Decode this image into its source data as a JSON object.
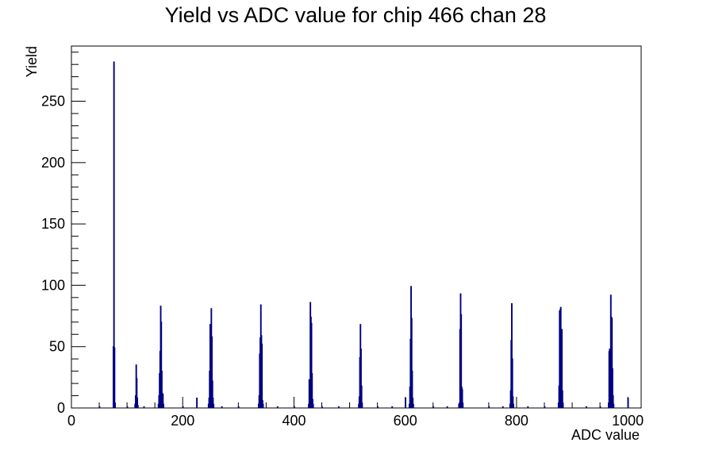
{
  "chart_data": {
    "type": "histogram",
    "title": "Yield vs ADC value for chip 466 chan 28",
    "xlabel": "ADC value",
    "ylabel": "Yield",
    "xlim": [
      0,
      1024
    ],
    "ylim": [
      0,
      295
    ],
    "x_ticks": [
      0,
      200,
      400,
      600,
      800,
      1000
    ],
    "y_ticks": [
      0,
      50,
      100,
      150,
      200,
      250
    ],
    "grid": false,
    "legend": "none",
    "line_color": "#000080",
    "bin_width": 1,
    "bins": [
      {
        "x": 50,
        "y": 1
      },
      {
        "x": 75,
        "y": 50
      },
      {
        "x": 76,
        "y": 282
      },
      {
        "x": 77,
        "y": 49
      },
      {
        "x": 78,
        "y": 4
      },
      {
        "x": 100,
        "y": 1
      },
      {
        "x": 114,
        "y": 3
      },
      {
        "x": 115,
        "y": 10
      },
      {
        "x": 116,
        "y": 35
      },
      {
        "x": 117,
        "y": 24
      },
      {
        "x": 118,
        "y": 8
      },
      {
        "x": 119,
        "y": 2
      },
      {
        "x": 130,
        "y": 1
      },
      {
        "x": 156,
        "y": 3
      },
      {
        "x": 157,
        "y": 10
      },
      {
        "x": 158,
        "y": 28
      },
      {
        "x": 159,
        "y": 46
      },
      {
        "x": 160,
        "y": 83
      },
      {
        "x": 161,
        "y": 70
      },
      {
        "x": 162,
        "y": 30
      },
      {
        "x": 163,
        "y": 12
      },
      {
        "x": 164,
        "y": 11
      },
      {
        "x": 165,
        "y": 3
      },
      {
        "x": 200,
        "y": 1
      },
      {
        "x": 225,
        "y": 8
      },
      {
        "x": 246,
        "y": 3
      },
      {
        "x": 247,
        "y": 8
      },
      {
        "x": 248,
        "y": 30
      },
      {
        "x": 249,
        "y": 68
      },
      {
        "x": 250,
        "y": 53
      },
      {
        "x": 251,
        "y": 81
      },
      {
        "x": 252,
        "y": 58
      },
      {
        "x": 253,
        "y": 22
      },
      {
        "x": 254,
        "y": 8
      },
      {
        "x": 255,
        "y": 3
      },
      {
        "x": 270,
        "y": 1
      },
      {
        "x": 300,
        "y": 1
      },
      {
        "x": 336,
        "y": 3
      },
      {
        "x": 337,
        "y": 10
      },
      {
        "x": 338,
        "y": 44
      },
      {
        "x": 339,
        "y": 57
      },
      {
        "x": 340,
        "y": 84
      },
      {
        "x": 341,
        "y": 59
      },
      {
        "x": 342,
        "y": 52
      },
      {
        "x": 343,
        "y": 6
      },
      {
        "x": 344,
        "y": 3
      },
      {
        "x": 370,
        "y": 1
      },
      {
        "x": 400,
        "y": 1
      },
      {
        "x": 426,
        "y": 3
      },
      {
        "x": 427,
        "y": 23
      },
      {
        "x": 428,
        "y": 18
      },
      {
        "x": 429,
        "y": 86
      },
      {
        "x": 430,
        "y": 74
      },
      {
        "x": 431,
        "y": 69
      },
      {
        "x": 432,
        "y": 28
      },
      {
        "x": 433,
        "y": 7
      },
      {
        "x": 434,
        "y": 3
      },
      {
        "x": 450,
        "y": 1
      },
      {
        "x": 480,
        "y": 1
      },
      {
        "x": 516,
        "y": 3
      },
      {
        "x": 517,
        "y": 9
      },
      {
        "x": 518,
        "y": 41
      },
      {
        "x": 519,
        "y": 68
      },
      {
        "x": 520,
        "y": 48
      },
      {
        "x": 521,
        "y": 18
      },
      {
        "x": 522,
        "y": 4
      },
      {
        "x": 550,
        "y": 1
      },
      {
        "x": 576,
        "y": 1
      },
      {
        "x": 600,
        "y": 8
      },
      {
        "x": 607,
        "y": 3
      },
      {
        "x": 608,
        "y": 17
      },
      {
        "x": 609,
        "y": 56
      },
      {
        "x": 610,
        "y": 99
      },
      {
        "x": 611,
        "y": 73
      },
      {
        "x": 612,
        "y": 30
      },
      {
        "x": 613,
        "y": 8
      },
      {
        "x": 614,
        "y": 3
      },
      {
        "x": 650,
        "y": 1
      },
      {
        "x": 675,
        "y": 1
      },
      {
        "x": 696,
        "y": 3
      },
      {
        "x": 697,
        "y": 4
      },
      {
        "x": 698,
        "y": 64
      },
      {
        "x": 699,
        "y": 93
      },
      {
        "x": 700,
        "y": 76
      },
      {
        "x": 701,
        "y": 17
      },
      {
        "x": 702,
        "y": 15
      },
      {
        "x": 703,
        "y": 4
      },
      {
        "x": 750,
        "y": 1
      },
      {
        "x": 775,
        "y": 1
      },
      {
        "x": 788,
        "y": 3
      },
      {
        "x": 789,
        "y": 14
      },
      {
        "x": 790,
        "y": 55
      },
      {
        "x": 791,
        "y": 85
      },
      {
        "x": 792,
        "y": 40
      },
      {
        "x": 793,
        "y": 9
      },
      {
        "x": 794,
        "y": 3
      },
      {
        "x": 820,
        "y": 1
      },
      {
        "x": 850,
        "y": 1
      },
      {
        "x": 875,
        "y": 4
      },
      {
        "x": 876,
        "y": 18
      },
      {
        "x": 877,
        "y": 79
      },
      {
        "x": 878,
        "y": 80
      },
      {
        "x": 879,
        "y": 82
      },
      {
        "x": 880,
        "y": 40
      },
      {
        "x": 881,
        "y": 64
      },
      {
        "x": 882,
        "y": 14
      },
      {
        "x": 883,
        "y": 4
      },
      {
        "x": 925,
        "y": 1
      },
      {
        "x": 950,
        "y": 1
      },
      {
        "x": 965,
        "y": 4
      },
      {
        "x": 966,
        "y": 46
      },
      {
        "x": 967,
        "y": 48
      },
      {
        "x": 968,
        "y": 45
      },
      {
        "x": 969,
        "y": 92
      },
      {
        "x": 970,
        "y": 74
      },
      {
        "x": 971,
        "y": 73
      },
      {
        "x": 972,
        "y": 32
      },
      {
        "x": 973,
        "y": 10
      },
      {
        "x": 974,
        "y": 3
      },
      {
        "x": 1000,
        "y": 8
      }
    ]
  }
}
